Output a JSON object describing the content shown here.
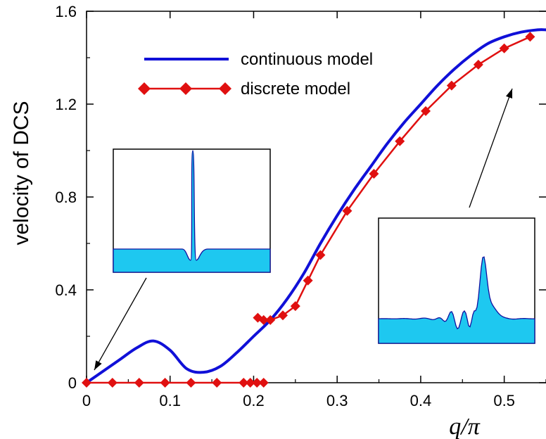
{
  "chart_data": {
    "type": "line",
    "title": "",
    "xlabel": "q/π",
    "ylabel": "velocity of DCS",
    "xlim": [
      0,
      0.55
    ],
    "ylim": [
      0,
      1.6
    ],
    "xticks": [
      "0",
      "0.1",
      "0.2",
      "0.3",
      "0.4",
      "0.5"
    ],
    "xtick_values": [
      0,
      0.1,
      0.2,
      0.3,
      0.4,
      0.5
    ],
    "yticks": [
      "0",
      "0.4",
      "0.8",
      "1.2",
      "1.6"
    ],
    "ytick_values": [
      0,
      0.4,
      0.8,
      1.2,
      1.6
    ],
    "grid": false,
    "legend_position": "top-left",
    "series": [
      {
        "name": "continuous model",
        "color": "#1010d8",
        "marker": "none",
        "x": [
          0,
          0.02,
          0.04,
          0.06,
          0.08,
          0.1,
          0.12,
          0.14,
          0.16,
          0.18,
          0.2,
          0.22,
          0.24,
          0.26,
          0.28,
          0.3,
          0.32,
          0.34,
          0.36,
          0.38,
          0.4,
          0.42,
          0.44,
          0.46,
          0.48,
          0.5,
          0.52,
          0.54,
          0.55
        ],
        "y": [
          0,
          0.05,
          0.1,
          0.15,
          0.18,
          0.14,
          0.06,
          0.045,
          0.07,
          0.13,
          0.2,
          0.27,
          0.36,
          0.47,
          0.6,
          0.72,
          0.83,
          0.93,
          1.03,
          1.12,
          1.2,
          1.28,
          1.35,
          1.41,
          1.46,
          1.49,
          1.51,
          1.52,
          1.52
        ]
      },
      {
        "name": "discrete model",
        "color": "#e01010",
        "marker": "diamond",
        "x": [
          0,
          0.031,
          0.063,
          0.094,
          0.125,
          0.156,
          0.188,
          0.196,
          0.204,
          0.212,
          0.205,
          0.212,
          0.22,
          0.235,
          0.25,
          0.265,
          0.28,
          0.312,
          0.344,
          0.375,
          0.406,
          0.437,
          0.469,
          0.5,
          0.531
        ],
        "y": [
          0,
          0,
          0,
          0,
          0,
          0,
          0,
          0,
          0,
          0,
          0.28,
          0.27,
          0.27,
          0.29,
          0.33,
          0.44,
          0.55,
          0.74,
          0.9,
          1.04,
          1.17,
          1.28,
          1.37,
          1.44,
          1.49
        ]
      }
    ],
    "insets": [
      {
        "position": "left",
        "description_profile": "single sharp peak on flat baseline"
      },
      {
        "position": "right",
        "description_profile": "oscillating wave packet with main peak"
      }
    ]
  }
}
